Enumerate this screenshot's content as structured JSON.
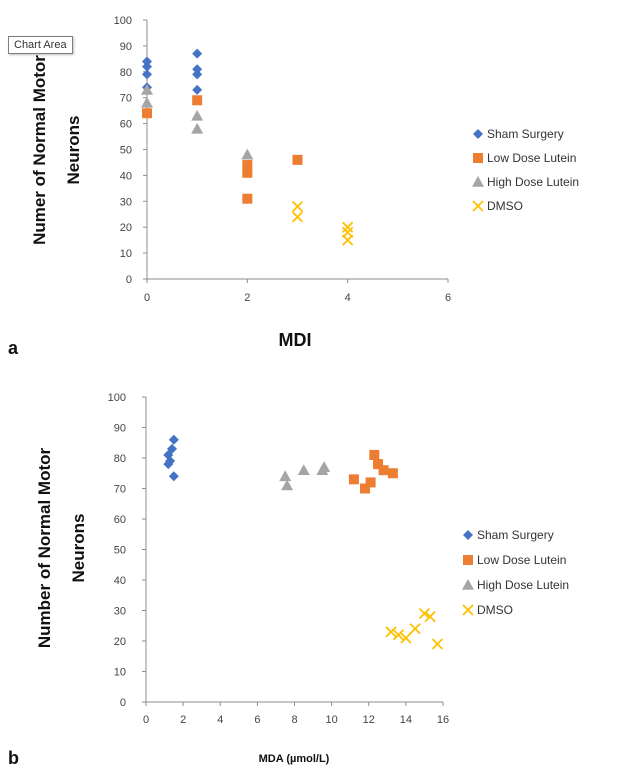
{
  "tooltip": {
    "text": "Chart Area"
  },
  "chart_data": [
    {
      "panel": "a",
      "type": "scatter",
      "xlabel": "MDI",
      "ylabel": "Numer of Normal Motor Neurons",
      "xlim": [
        0,
        6
      ],
      "ylim": [
        0,
        100
      ],
      "xticks": [
        "0",
        "2",
        "4",
        "6"
      ],
      "yticks": [
        "0",
        "10",
        "20",
        "30",
        "40",
        "50",
        "60",
        "70",
        "80",
        "90",
        "100"
      ],
      "grid": false,
      "legend": "right",
      "series": [
        {
          "name": "Sham Surgery",
          "marker": "diamond",
          "color": "#4472c4",
          "points": [
            [
              0,
              84
            ],
            [
              0,
              82
            ],
            [
              0,
              79
            ],
            [
              0,
              74
            ],
            [
              1,
              87
            ],
            [
              1,
              81
            ],
            [
              1,
              79
            ],
            [
              1,
              73
            ]
          ]
        },
        {
          "name": "Low Dose Lutein",
          "marker": "square",
          "color": "#ed7d31",
          "points": [
            [
              0,
              64
            ],
            [
              1,
              69
            ],
            [
              2,
              44
            ],
            [
              2,
              41
            ],
            [
              2,
              31
            ],
            [
              3,
              46
            ]
          ]
        },
        {
          "name": "High Dose Lutein",
          "marker": "triangle",
          "color": "#a5a5a5",
          "points": [
            [
              0,
              73
            ],
            [
              0,
              68
            ],
            [
              1,
              63
            ],
            [
              1,
              58
            ],
            [
              2,
              48
            ]
          ]
        },
        {
          "name": "DMSO",
          "marker": "x",
          "color": "#ffc000",
          "points": [
            [
              3,
              28
            ],
            [
              3,
              24
            ],
            [
              4,
              20
            ],
            [
              4,
              18
            ],
            [
              4,
              15
            ]
          ]
        }
      ]
    },
    {
      "panel": "b",
      "type": "scatter",
      "xlabel": "MDA (µmol/L)",
      "ylabel": "Number of Normal Motor Neurons",
      "xlim": [
        0,
        16
      ],
      "ylim": [
        0,
        100
      ],
      "xticks": [
        "0",
        "2",
        "4",
        "6",
        "8",
        "10",
        "12",
        "14",
        "16"
      ],
      "yticks": [
        "0",
        "10",
        "20",
        "30",
        "40",
        "50",
        "60",
        "70",
        "80",
        "90",
        "100"
      ],
      "grid": false,
      "legend": "right",
      "series": [
        {
          "name": "Sham Surgery",
          "marker": "diamond",
          "color": "#4472c4",
          "points": [
            [
              1.5,
              86
            ],
            [
              1.4,
              83
            ],
            [
              1.2,
              81
            ],
            [
              1.3,
              79
            ],
            [
              1.2,
              78
            ],
            [
              1.5,
              74
            ]
          ]
        },
        {
          "name": "Low Dose Lutein",
          "marker": "square",
          "color": "#ed7d31",
          "points": [
            [
              11.2,
              73
            ],
            [
              11.8,
              70
            ],
            [
              12.1,
              72
            ],
            [
              12.3,
              81
            ],
            [
              12.5,
              78
            ],
            [
              12.8,
              76
            ],
            [
              13.3,
              75
            ]
          ]
        },
        {
          "name": "High Dose Lutein",
          "marker": "triangle",
          "color": "#a5a5a5",
          "points": [
            [
              7.5,
              74
            ],
            [
              7.6,
              71
            ],
            [
              8.5,
              76
            ],
            [
              9.6,
              77
            ],
            [
              9.5,
              76
            ]
          ]
        },
        {
          "name": "DMSO",
          "marker": "x",
          "color": "#ffc000",
          "points": [
            [
              13.2,
              23
            ],
            [
              13.6,
              22
            ],
            [
              14.0,
              21
            ],
            [
              14.5,
              24
            ],
            [
              15.0,
              29
            ],
            [
              15.3,
              28
            ],
            [
              15.7,
              19
            ]
          ]
        }
      ]
    }
  ],
  "panel_labels": {
    "a": "a",
    "b": "b"
  },
  "colors": {
    "axis": "#8c8c8c",
    "tick_text": "#444444",
    "title_text": "#111111"
  }
}
